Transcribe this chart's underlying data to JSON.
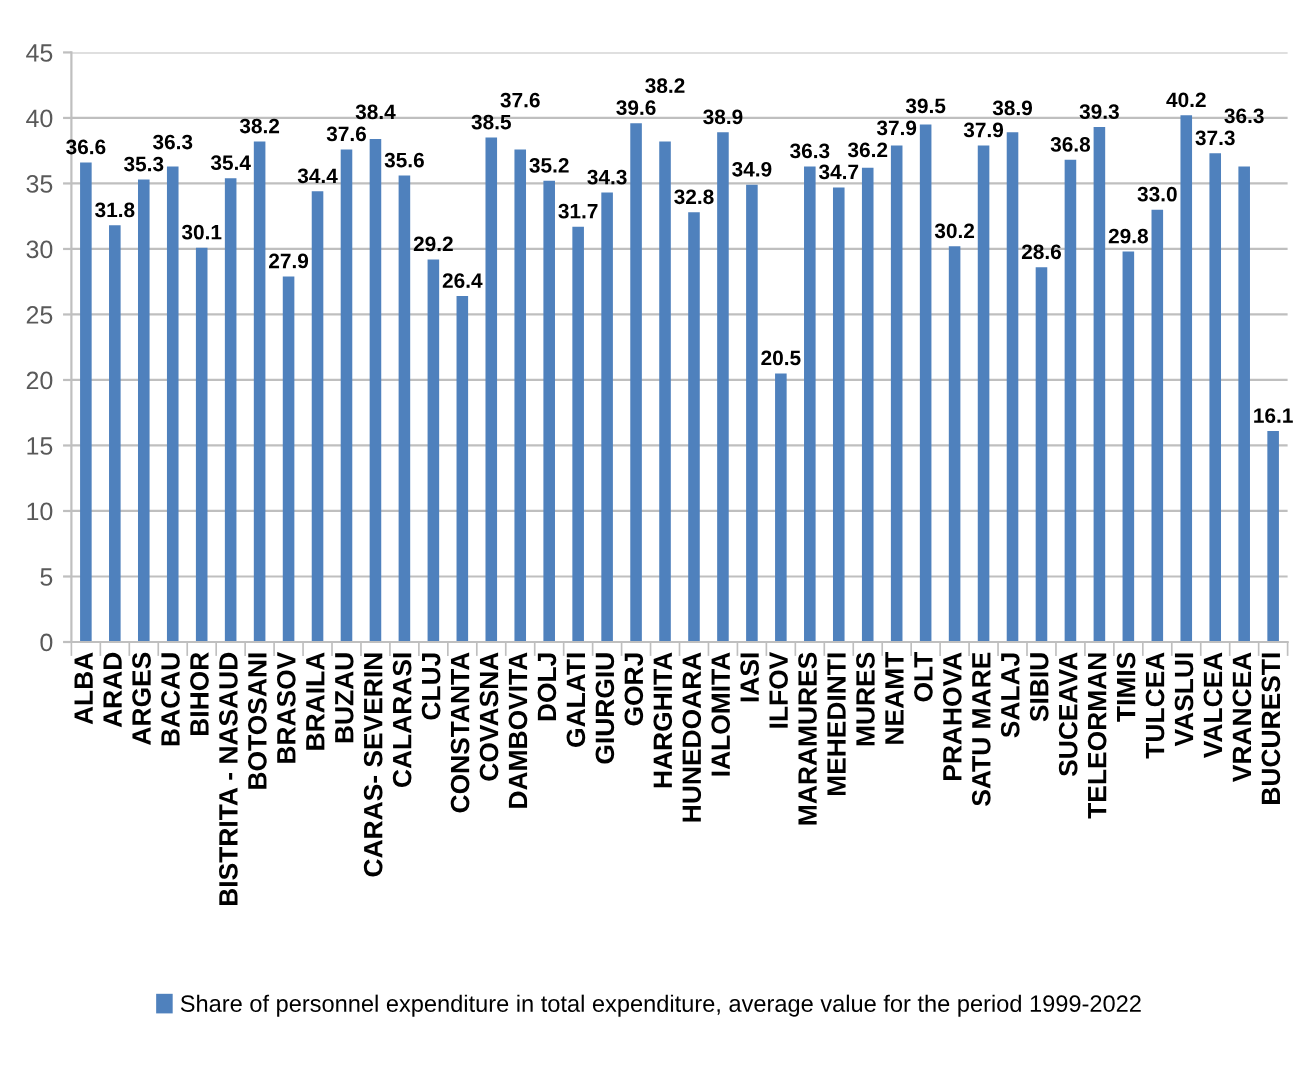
{
  "chart_data": {
    "type": "bar",
    "categories": [
      "ALBA",
      "ARAD",
      "ARGES",
      "BACAU",
      "BIHOR",
      "BISTRITA - NASAUD",
      "BOTOSANI",
      "BRASOV",
      "BRAILA",
      "BUZAU",
      "CARAS- SEVERIN",
      "CALARASI",
      "CLUJ",
      "CONSTANTA",
      "COVASNA",
      "DAMBOVITA",
      "DOLJ",
      "GALATI",
      "GIURGIU",
      "GORJ",
      "HARGHITA",
      "HUNEDOARA",
      "IALOMITA",
      "IASI",
      "ILFOV",
      "MARAMURES",
      "MEHEDINTI",
      "MURES",
      "NEAMT",
      "OLT",
      "PRAHOVA",
      "SATU MARE",
      "SALAJ",
      "SIBIU",
      "SUCEAVA",
      "TELEORMAN",
      "TIMIS",
      "TULCEA",
      "VASLUI",
      "VALCEA",
      "VRANCEA",
      "BUCURESTI"
    ],
    "series": [
      {
        "name": "Share of personnel expenditure in total expenditure, average value for the period 1999-2022",
        "color": "#4f81bd",
        "values": [
          36.6,
          31.8,
          35.3,
          36.3,
          30.1,
          35.4,
          38.2,
          27.9,
          34.4,
          37.6,
          38.4,
          35.6,
          29.2,
          26.4,
          38.5,
          37.6,
          35.2,
          31.7,
          34.3,
          39.6,
          38.2,
          32.8,
          38.9,
          34.9,
          20.5,
          36.3,
          34.7,
          36.2,
          37.9,
          39.5,
          30.2,
          37.9,
          38.9,
          28.6,
          36.8,
          39.3,
          29.8,
          33.0,
          40.2,
          37.3,
          36.3,
          16.1
        ],
        "value_labels": [
          "36.6",
          "31.8",
          "35.3",
          "36.3",
          "30.1",
          "35.4",
          "38.2",
          "27.9",
          "34.4",
          "37.6",
          "38.4",
          "35.6",
          "29.2",
          "26.4",
          "38.5",
          "37.6",
          "35.2",
          "31.7",
          "34.3",
          "39.6",
          "38.2",
          "32.8",
          "38.9",
          "34.9",
          "20.5",
          "36.3",
          "34.7",
          "36.2",
          "37.9",
          "39.5",
          "30.2",
          "37.9",
          "38.9",
          "28.6",
          "36.8",
          "39.3",
          "29.8",
          "33.0",
          "40.2",
          "37.3",
          "36.3",
          "16.1"
        ]
      }
    ],
    "ylim": [
      0,
      45
    ],
    "yticks": [
      0,
      5,
      10,
      15,
      20,
      25,
      30,
      35,
      40,
      45
    ],
    "grid": "y",
    "legend": "bottom"
  }
}
